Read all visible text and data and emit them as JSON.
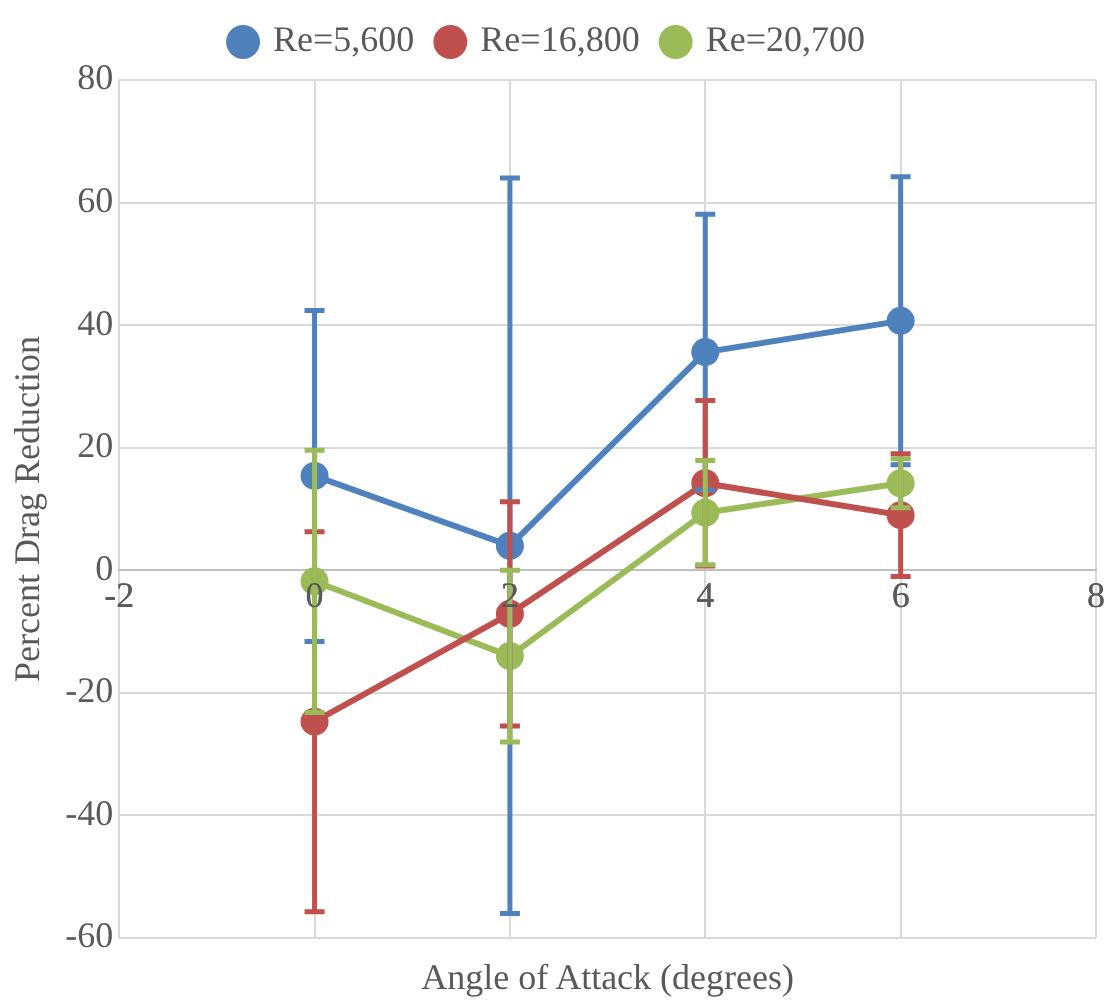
{
  "chart_data": {
    "type": "line",
    "xlabel": "Angle of Attack (degrees)",
    "ylabel": "Percent Drag Reduction",
    "x": [
      0,
      2,
      4,
      6
    ],
    "xlim": [
      -2,
      8
    ],
    "xticks": [
      -2,
      0,
      2,
      4,
      6,
      8
    ],
    "ylim": [
      -60,
      80
    ],
    "yticks": [
      -60,
      -40,
      -20,
      0,
      20,
      40,
      60,
      80
    ],
    "grid": true,
    "legend": "top",
    "marker": "circle",
    "line_style": "solid",
    "series": [
      {
        "name": "Re=5,600",
        "color": "#4f81bd",
        "values": [
          15.4,
          4.0,
          35.6,
          40.7
        ],
        "errors": [
          27,
          60,
          22.5,
          23.5
        ]
      },
      {
        "name": "Re=16,800",
        "color": "#c0504d",
        "values": [
          -24.7,
          -7.1,
          14.2,
          9.0
        ],
        "errors": [
          31,
          18.3,
          13.5,
          10
        ]
      },
      {
        "name": "Re=20,700",
        "color": "#9bbb59",
        "values": [
          -1.8,
          -14.0,
          9.4,
          14.2
        ],
        "errors": [
          21.4,
          14,
          8.5,
          4
        ]
      }
    ]
  }
}
